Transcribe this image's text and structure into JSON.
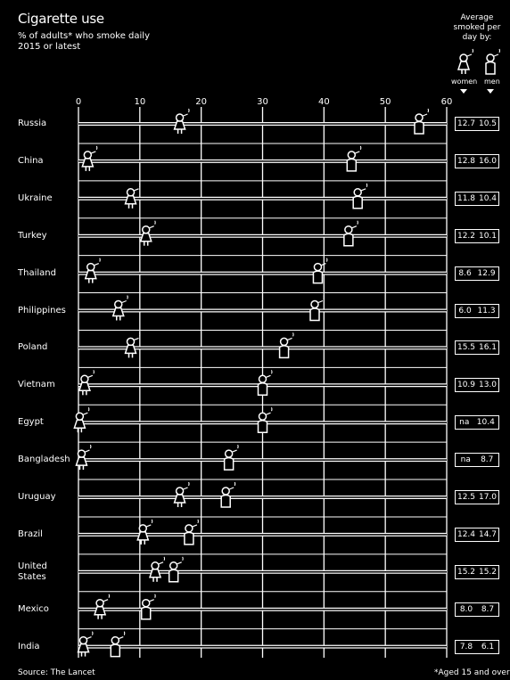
{
  "title": "Cigarette use",
  "subtitle": "% of adults* who smoke daily",
  "subtitle2": "2015 or latest",
  "avg_header": "Average smoked per day by:",
  "legend": {
    "women": "women",
    "men": "men"
  },
  "source": "Source: The Lancet",
  "footnote": "*Aged 15 and over",
  "chart_data": {
    "type": "dot",
    "xlim": [
      0,
      60
    ],
    "xticks": [
      "0",
      "10",
      "20",
      "30",
      "40",
      "50",
      "60"
    ],
    "countries": [
      "Russia",
      "China",
      "Ukraine",
      "Turkey",
      "Thailand",
      "Philippines",
      "Poland",
      "Vietnam",
      "Egypt",
      "Bangladesh",
      "Uruguay",
      "Brazil",
      "United States",
      "Mexico",
      "India"
    ],
    "series": [
      {
        "name": "women",
        "values": [
          16.5,
          1.5,
          8.5,
          11,
          2,
          6.5,
          8.5,
          1,
          0.2,
          0.5,
          16.5,
          10.5,
          12.5,
          3.5,
          0.8
        ]
      },
      {
        "name": "men",
        "values": [
          55.5,
          44.5,
          45.5,
          44,
          39,
          38.5,
          33.5,
          30,
          30,
          24.5,
          24,
          18,
          15.5,
          11,
          6
        ]
      }
    ],
    "avg_women": [
      "12.7",
      "12.8",
      "11.8",
      "12.2",
      "8.6",
      "6.0",
      "15.5",
      "10.9",
      "na",
      "na",
      "12.5",
      "12.4",
      "15.2",
      "8.0",
      "7.8"
    ],
    "avg_men": [
      "10.5",
      "16.0",
      "10.4",
      "10.1",
      "12.9",
      "11.3",
      "16.1",
      "13.0",
      "10.4",
      "8.7",
      "17.0",
      "14.7",
      "15.2",
      "8.7",
      "6.1"
    ]
  }
}
